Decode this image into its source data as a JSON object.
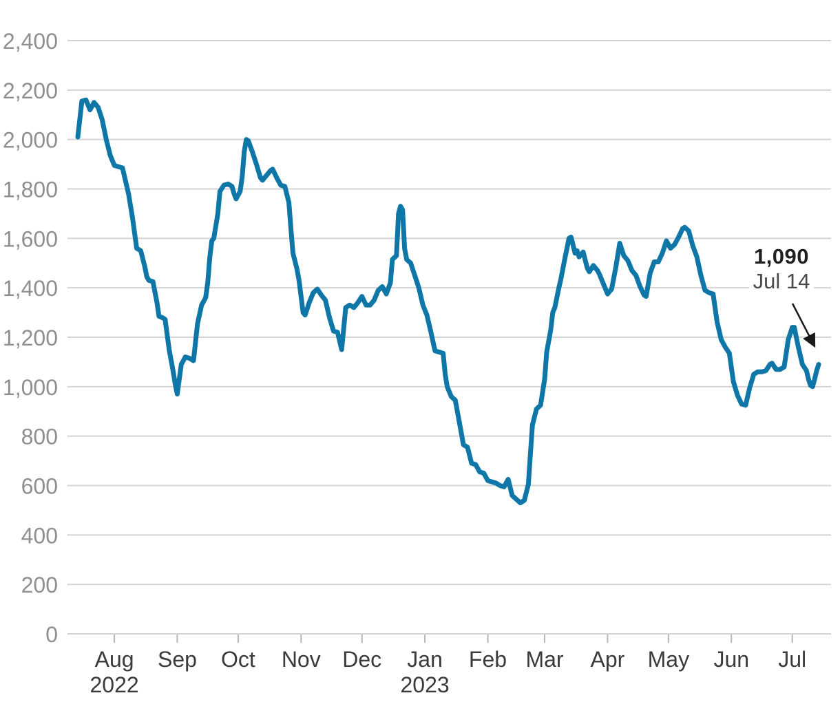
{
  "chart_data": {
    "type": "line",
    "title": "",
    "grid": true,
    "legend": false,
    "x_range": [
      "2022-07-14",
      "2023-07-14"
    ],
    "y_axis": {
      "min": 0,
      "max": 2400,
      "step": 200,
      "ticks": [
        {
          "value": 0,
          "label": "0"
        },
        {
          "value": 200,
          "label": "200"
        },
        {
          "value": 400,
          "label": "400"
        },
        {
          "value": 600,
          "label": "600"
        },
        {
          "value": 800,
          "label": "800"
        },
        {
          "value": 1000,
          "label": "1,000"
        },
        {
          "value": 1200,
          "label": "1,200"
        },
        {
          "value": 1400,
          "label": "1,400"
        },
        {
          "value": 1600,
          "label": "1,600"
        },
        {
          "value": 1800,
          "label": "1,800"
        },
        {
          "value": 2000,
          "label": "2,000"
        },
        {
          "value": 2200,
          "label": "2,200"
        },
        {
          "value": 2400,
          "label": "2,400"
        }
      ]
    },
    "x_axis": {
      "months": [
        {
          "label": "Aug",
          "year": "2022",
          "date": "2022-08-01"
        },
        {
          "label": "Sep",
          "date": "2022-09-01"
        },
        {
          "label": "Oct",
          "date": "2022-10-01"
        },
        {
          "label": "Nov",
          "date": "2022-11-01"
        },
        {
          "label": "Dec",
          "date": "2022-12-01"
        },
        {
          "label": "Jan",
          "year": "2023",
          "date": "2023-01-01"
        },
        {
          "label": "Feb",
          "date": "2023-02-01"
        },
        {
          "label": "Mar",
          "date": "2023-03-01"
        },
        {
          "label": "Apr",
          "date": "2023-04-01"
        },
        {
          "label": "May",
          "date": "2023-05-01"
        },
        {
          "label": "Jun",
          "date": "2023-06-01"
        },
        {
          "label": "Jul",
          "date": "2023-07-01"
        }
      ]
    },
    "annotation": {
      "value_label": "1,090",
      "date_label": "Jul 14",
      "points_to_date": "2023-07-14"
    },
    "colors": {
      "line": "#0f76a8",
      "grid": "#d4d4d4",
      "tick": "#b5b5b5",
      "y_label": "#8f8f8f",
      "x_label": "#3a3a3a",
      "annotation_value": "#1f1f1f",
      "annotation_date": "#4a4a4a",
      "arrow": "#1a1a1a"
    },
    "series": [
      {
        "name": "value",
        "points": [
          [
            "2022-07-14",
            2010
          ],
          [
            "2022-07-16",
            2155
          ],
          [
            "2022-07-18",
            2160
          ],
          [
            "2022-07-20",
            2120
          ],
          [
            "2022-07-22",
            2150
          ],
          [
            "2022-07-24",
            2130
          ],
          [
            "2022-07-26",
            2080
          ],
          [
            "2022-07-28",
            2000
          ],
          [
            "2022-07-30",
            1935
          ],
          [
            "2022-08-01",
            1895
          ],
          [
            "2022-08-03",
            1890
          ],
          [
            "2022-08-05",
            1885
          ],
          [
            "2022-08-08",
            1780
          ],
          [
            "2022-08-10",
            1680
          ],
          [
            "2022-08-12",
            1560
          ],
          [
            "2022-08-14",
            1550
          ],
          [
            "2022-08-16",
            1485
          ],
          [
            "2022-08-17",
            1445
          ],
          [
            "2022-08-18",
            1430
          ],
          [
            "2022-08-20",
            1425
          ],
          [
            "2022-08-22",
            1340
          ],
          [
            "2022-08-23",
            1285
          ],
          [
            "2022-08-25",
            1278
          ],
          [
            "2022-08-26",
            1272
          ],
          [
            "2022-08-28",
            1150
          ],
          [
            "2022-08-30",
            1060
          ],
          [
            "2022-08-31",
            1010
          ],
          [
            "2022-09-01",
            970
          ],
          [
            "2022-09-03",
            1090
          ],
          [
            "2022-09-05",
            1120
          ],
          [
            "2022-09-07",
            1115
          ],
          [
            "2022-09-09",
            1105
          ],
          [
            "2022-09-11",
            1255
          ],
          [
            "2022-09-13",
            1330
          ],
          [
            "2022-09-15",
            1360
          ],
          [
            "2022-09-16",
            1420
          ],
          [
            "2022-09-17",
            1520
          ],
          [
            "2022-09-18",
            1590
          ],
          [
            "2022-09-19",
            1600
          ],
          [
            "2022-09-21",
            1700
          ],
          [
            "2022-09-22",
            1790
          ],
          [
            "2022-09-24",
            1815
          ],
          [
            "2022-09-26",
            1820
          ],
          [
            "2022-09-28",
            1810
          ],
          [
            "2022-09-29",
            1780
          ],
          [
            "2022-09-30",
            1760
          ],
          [
            "2022-10-02",
            1790
          ],
          [
            "2022-10-03",
            1850
          ],
          [
            "2022-10-04",
            1950
          ],
          [
            "2022-10-05",
            2000
          ],
          [
            "2022-10-06",
            1995
          ],
          [
            "2022-10-08",
            1950
          ],
          [
            "2022-10-10",
            1900
          ],
          [
            "2022-10-12",
            1845
          ],
          [
            "2022-10-13",
            1835
          ],
          [
            "2022-10-15",
            1855
          ],
          [
            "2022-10-17",
            1875
          ],
          [
            "2022-10-18",
            1880
          ],
          [
            "2022-10-20",
            1845
          ],
          [
            "2022-10-22",
            1815
          ],
          [
            "2022-10-24",
            1810
          ],
          [
            "2022-10-26",
            1745
          ],
          [
            "2022-10-27",
            1640
          ],
          [
            "2022-10-28",
            1540
          ],
          [
            "2022-10-30",
            1475
          ],
          [
            "2022-10-31",
            1430
          ],
          [
            "2022-11-02",
            1300
          ],
          [
            "2022-11-03",
            1290
          ],
          [
            "2022-11-05",
            1340
          ],
          [
            "2022-11-07",
            1380
          ],
          [
            "2022-11-09",
            1395
          ],
          [
            "2022-11-11",
            1370
          ],
          [
            "2022-11-13",
            1350
          ],
          [
            "2022-11-15",
            1280
          ],
          [
            "2022-11-17",
            1225
          ],
          [
            "2022-11-19",
            1220
          ],
          [
            "2022-11-21",
            1150
          ],
          [
            "2022-11-23",
            1320
          ],
          [
            "2022-11-25",
            1330
          ],
          [
            "2022-11-27",
            1320
          ],
          [
            "2022-11-29",
            1340
          ],
          [
            "2022-12-01",
            1365
          ],
          [
            "2022-12-03",
            1330
          ],
          [
            "2022-12-05",
            1330
          ],
          [
            "2022-12-07",
            1350
          ],
          [
            "2022-12-09",
            1390
          ],
          [
            "2022-12-11",
            1405
          ],
          [
            "2022-12-13",
            1375
          ],
          [
            "2022-12-15",
            1420
          ],
          [
            "2022-12-16",
            1515
          ],
          [
            "2022-12-18",
            1530
          ],
          [
            "2022-12-19",
            1700
          ],
          [
            "2022-12-20",
            1730
          ],
          [
            "2022-12-21",
            1715
          ],
          [
            "2022-12-22",
            1560
          ],
          [
            "2022-12-23",
            1515
          ],
          [
            "2022-12-25",
            1500
          ],
          [
            "2022-12-27",
            1450
          ],
          [
            "2022-12-29",
            1400
          ],
          [
            "2022-12-31",
            1330
          ],
          [
            "2023-01-02",
            1290
          ],
          [
            "2023-01-04",
            1220
          ],
          [
            "2023-01-06",
            1145
          ],
          [
            "2023-01-08",
            1140
          ],
          [
            "2023-01-10",
            1135
          ],
          [
            "2023-01-11",
            1050
          ],
          [
            "2023-01-12",
            1000
          ],
          [
            "2023-01-14",
            960
          ],
          [
            "2023-01-16",
            945
          ],
          [
            "2023-01-18",
            855
          ],
          [
            "2023-01-20",
            765
          ],
          [
            "2023-01-22",
            755
          ],
          [
            "2023-01-24",
            690
          ],
          [
            "2023-01-26",
            685
          ],
          [
            "2023-01-28",
            655
          ],
          [
            "2023-01-30",
            650
          ],
          [
            "2023-02-01",
            620
          ],
          [
            "2023-02-03",
            615
          ],
          [
            "2023-02-05",
            610
          ],
          [
            "2023-02-07",
            600
          ],
          [
            "2023-02-09",
            595
          ],
          [
            "2023-02-11",
            625
          ],
          [
            "2023-02-13",
            560
          ],
          [
            "2023-02-15",
            545
          ],
          [
            "2023-02-17",
            530
          ],
          [
            "2023-02-19",
            540
          ],
          [
            "2023-02-21",
            605
          ],
          [
            "2023-02-22",
            730
          ],
          [
            "2023-02-23",
            845
          ],
          [
            "2023-02-25",
            910
          ],
          [
            "2023-02-27",
            925
          ],
          [
            "2023-03-01",
            1030
          ],
          [
            "2023-03-02",
            1140
          ],
          [
            "2023-03-04",
            1230
          ],
          [
            "2023-03-05",
            1300
          ],
          [
            "2023-03-06",
            1320
          ],
          [
            "2023-03-08",
            1400
          ],
          [
            "2023-03-09",
            1435
          ],
          [
            "2023-03-11",
            1520
          ],
          [
            "2023-03-13",
            1600
          ],
          [
            "2023-03-14",
            1605
          ],
          [
            "2023-03-16",
            1540
          ],
          [
            "2023-03-17",
            1550
          ],
          [
            "2023-03-18",
            1525
          ],
          [
            "2023-03-20",
            1545
          ],
          [
            "2023-03-22",
            1480
          ],
          [
            "2023-03-23",
            1465
          ],
          [
            "2023-03-25",
            1490
          ],
          [
            "2023-03-27",
            1470
          ],
          [
            "2023-03-28",
            1455
          ],
          [
            "2023-03-30",
            1415
          ],
          [
            "2023-04-01",
            1375
          ],
          [
            "2023-04-03",
            1395
          ],
          [
            "2023-04-05",
            1480
          ],
          [
            "2023-04-07",
            1580
          ],
          [
            "2023-04-09",
            1530
          ],
          [
            "2023-04-11",
            1510
          ],
          [
            "2023-04-13",
            1470
          ],
          [
            "2023-04-15",
            1450
          ],
          [
            "2023-04-17",
            1405
          ],
          [
            "2023-04-19",
            1370
          ],
          [
            "2023-04-20",
            1365
          ],
          [
            "2023-04-22",
            1460
          ],
          [
            "2023-04-24",
            1505
          ],
          [
            "2023-04-26",
            1505
          ],
          [
            "2023-04-28",
            1540
          ],
          [
            "2023-04-30",
            1590
          ],
          [
            "2023-05-02",
            1560
          ],
          [
            "2023-05-04",
            1575
          ],
          [
            "2023-05-06",
            1605
          ],
          [
            "2023-05-08",
            1640
          ],
          [
            "2023-05-09",
            1645
          ],
          [
            "2023-05-11",
            1630
          ],
          [
            "2023-05-13",
            1570
          ],
          [
            "2023-05-15",
            1525
          ],
          [
            "2023-05-17",
            1450
          ],
          [
            "2023-05-19",
            1390
          ],
          [
            "2023-05-21",
            1380
          ],
          [
            "2023-05-23",
            1375
          ],
          [
            "2023-05-25",
            1260
          ],
          [
            "2023-05-27",
            1190
          ],
          [
            "2023-05-29",
            1160
          ],
          [
            "2023-05-31",
            1135
          ],
          [
            "2023-06-02",
            1020
          ],
          [
            "2023-06-04",
            965
          ],
          [
            "2023-06-06",
            930
          ],
          [
            "2023-06-08",
            925
          ],
          [
            "2023-06-10",
            995
          ],
          [
            "2023-06-12",
            1050
          ],
          [
            "2023-06-14",
            1060
          ],
          [
            "2023-06-16",
            1060
          ],
          [
            "2023-06-18",
            1065
          ],
          [
            "2023-06-20",
            1090
          ],
          [
            "2023-06-21",
            1095
          ],
          [
            "2023-06-23",
            1070
          ],
          [
            "2023-06-25",
            1070
          ],
          [
            "2023-06-27",
            1080
          ],
          [
            "2023-06-29",
            1190
          ],
          [
            "2023-07-01",
            1240
          ],
          [
            "2023-07-02",
            1240
          ],
          [
            "2023-07-04",
            1160
          ],
          [
            "2023-07-06",
            1090
          ],
          [
            "2023-07-08",
            1065
          ],
          [
            "2023-07-09",
            1030
          ],
          [
            "2023-07-10",
            1005
          ],
          [
            "2023-07-11",
            1000
          ],
          [
            "2023-07-12",
            1030
          ],
          [
            "2023-07-13",
            1065
          ],
          [
            "2023-07-14",
            1090
          ]
        ]
      }
    ]
  }
}
